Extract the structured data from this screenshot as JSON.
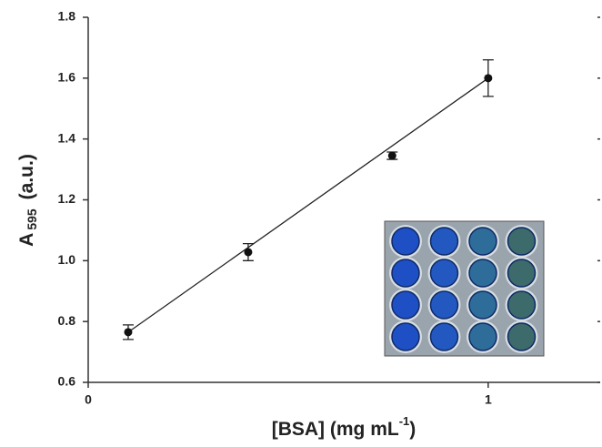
{
  "chart_data": {
    "type": "scatter",
    "xlabel": [
      "[BSA] (mg mL",
      "-1",
      ")"
    ],
    "ylabel": [
      "A",
      "595",
      "(a.u.)"
    ],
    "x": [
      0.1,
      0.4,
      0.76,
      1.0
    ],
    "values": [
      0.765,
      1.028,
      1.345,
      1.6
    ],
    "errors": [
      0.024,
      0.028,
      0.012,
      0.06
    ],
    "color": "#111111",
    "fit": {
      "x": [
        0.1,
        1.0
      ],
      "values": [
        0.765,
        1.6
      ]
    },
    "xlim": [
      0,
      1.28
    ],
    "ylim": [
      0.6,
      1.8
    ],
    "xticks": [
      0,
      1
    ],
    "yticks": [
      {
        "value": 0.6,
        "label": "0.6"
      },
      {
        "value": 0.8,
        "label": "0.8"
      },
      {
        "value": 1.0,
        "label": "1.0"
      },
      {
        "value": 1.2,
        "label": "1.2"
      },
      {
        "value": 1.4,
        "label": "1.4"
      },
      {
        "value": 1.6,
        "label": "1.6"
      },
      {
        "value": 1.8,
        "label": "1.8"
      }
    ],
    "grid": false
  }
}
